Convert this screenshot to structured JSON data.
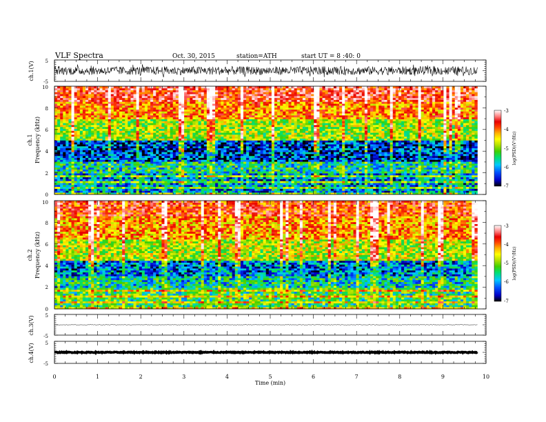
{
  "header": {
    "title": "VLF  Spectra",
    "date": "Oct. 30, 2015",
    "station": "station=ATH",
    "start": "start  UT =   8 :40: 0"
  },
  "chart_data": [
    {
      "type": "line",
      "ylabel": "ch.1(V)",
      "ylim": [
        -5,
        5
      ],
      "yticks": [
        "5",
        "-5"
      ],
      "xlim": [
        0,
        10
      ],
      "description_series": "noisy broadband waveform",
      "amplitude_range": [
        -2,
        2
      ],
      "center": 0,
      "data_end_min": 9.8
    },
    {
      "type": "heatmap",
      "ylabel_channel": "ch.1",
      "ylabel": "Frequency  (kHz)",
      "ylim": [
        0,
        10
      ],
      "yticks": [
        "0",
        "2",
        "4",
        "6",
        "8",
        "10"
      ],
      "xlim": [
        0,
        10
      ],
      "data_end_min": 9.8,
      "colorbar": {
        "label": "log(PSD)(V²/Hz)",
        "range": [
          -7,
          -3
        ],
        "ticks": [
          "-3",
          "-4",
          "-5",
          "-6",
          "-7"
        ]
      },
      "bands_khz": [
        {
          "from": 0,
          "to": 2,
          "level": -6.2
        },
        {
          "from": 2,
          "to": 3,
          "level": -5.8
        },
        {
          "from": 3,
          "to": 5,
          "level": -6.5
        },
        {
          "from": 5,
          "to": 7,
          "level": -5.2
        },
        {
          "from": 7,
          "to": 8.5,
          "level": -4.4
        },
        {
          "from": 8.5,
          "to": 10,
          "level": -3.9
        }
      ]
    },
    {
      "type": "heatmap",
      "ylabel_channel": "ch.2",
      "ylabel": "Frequency  (kHz)",
      "ylim": [
        0,
        10
      ],
      "yticks": [
        "0",
        "2",
        "4",
        "6",
        "8",
        "10"
      ],
      "xlim": [
        0,
        10
      ],
      "data_end_min": 9.8,
      "colorbar": {
        "label": "log(PSD)(V²/Hz)",
        "range": [
          -7,
          -3
        ],
        "ticks": [
          "-3",
          "-4",
          "-5",
          "-6",
          "-7"
        ]
      },
      "bands_khz": [
        {
          "from": 0,
          "to": 2,
          "level": -5.6
        },
        {
          "from": 2,
          "to": 3,
          "level": -5.9
        },
        {
          "from": 3,
          "to": 4.5,
          "level": -6.3
        },
        {
          "from": 4.5,
          "to": 6.5,
          "level": -5.1
        },
        {
          "from": 6.5,
          "to": 8.5,
          "level": -4.5
        },
        {
          "from": 8.5,
          "to": 10,
          "level": -4.1
        }
      ]
    },
    {
      "type": "line",
      "ylabel": "ch.3(V)",
      "ylim": [
        -5,
        5
      ],
      "yticks": [
        "5",
        "-5"
      ],
      "xlim": [
        0,
        10
      ],
      "center": 0,
      "amplitude_range": [
        -0.15,
        0.15
      ],
      "data_end_min": 9.8
    },
    {
      "type": "line",
      "ylabel": "ch.4(V)",
      "ylim": [
        -5,
        5
      ],
      "yticks": [
        "5",
        "-5"
      ],
      "xlim": [
        0,
        10
      ],
      "xlabel": "Time  (min)",
      "xticks": [
        "0",
        "1",
        "2",
        "3",
        "4",
        "5",
        "6",
        "7",
        "8",
        "9",
        "10"
      ],
      "center": 0,
      "amplitude_range": [
        -0.2,
        0.2
      ],
      "data_end_min": 9.8
    }
  ],
  "colors": {
    "colormap": [
      "#000000",
      "#0000c8",
      "#0050ff",
      "#00c8ff",
      "#00e070",
      "#40d000",
      "#b0e000",
      "#ffff00",
      "#ffb000",
      "#ff4000",
      "#e80000",
      "#ff8080",
      "#ffe0e0",
      "#ffffff"
    ]
  }
}
